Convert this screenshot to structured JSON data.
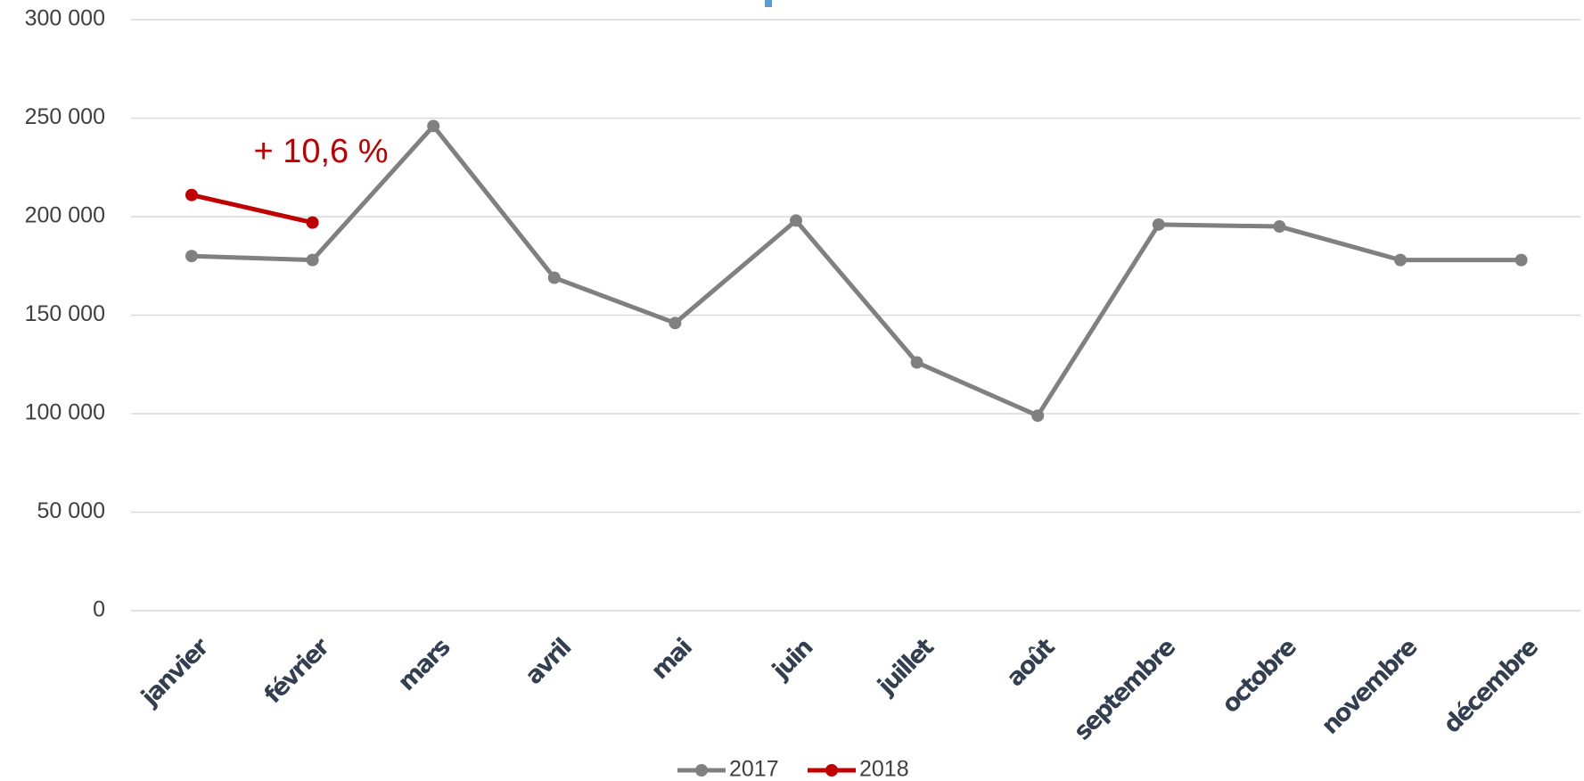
{
  "chart_data": {
    "type": "line",
    "categories": [
      "janvier",
      "février",
      "mars",
      "avril",
      "mai",
      "juin",
      "juillet",
      "août",
      "septembre",
      "octobre",
      "novembre",
      "décembre"
    ],
    "series": [
      {
        "name": "2017",
        "color": "#808080",
        "values": [
          180000,
          178000,
          246000,
          169000,
          146000,
          198000,
          126000,
          99000,
          196000,
          195000,
          178000,
          178000
        ]
      },
      {
        "name": "2018",
        "color": "#c00000",
        "values": [
          211000,
          197000,
          null,
          null,
          null,
          null,
          null,
          null,
          null,
          null,
          null,
          null
        ]
      }
    ],
    "annotation": "+ 10,6 %",
    "ylim": [
      0,
      300000
    ],
    "yticks": [
      0,
      {
        "value": 50000,
        "label": "50 000"
      },
      {
        "value": 100000,
        "label": "100 000"
      },
      {
        "value": 150000,
        "label": "150 000"
      },
      {
        "value": 200000,
        "label": "200 000"
      },
      {
        "value": 250000,
        "label": "250 000"
      },
      {
        "value": 300000,
        "label": "300 000"
      }
    ],
    "grid": true,
    "legend": "bottom"
  }
}
